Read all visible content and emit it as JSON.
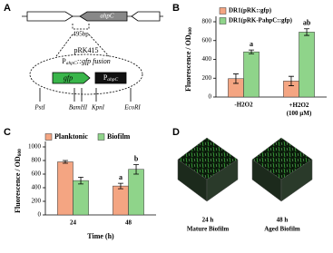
{
  "panels": [
    "A",
    "B",
    "C",
    "D"
  ],
  "diagram": {
    "gene": "ahpC",
    "distance": "495bp",
    "plasmid": "pRK415",
    "fusion": {
      "promoter": "P",
      "promoter_sub": "ahpC",
      "rest": "::gfp fusion"
    },
    "reporter": "gfp",
    "promoter_box": {
      "text": "P",
      "sub": "ahpC"
    },
    "sites": [
      "PstI",
      "BamHI",
      "KpnI",
      "EcoRI"
    ]
  },
  "chart_data": [
    {
      "type": "bar",
      "ylabel": "Fluorescence / OD",
      "ylabel_sub": "600",
      "categories": [
        "-H2O2",
        "+H2O2 (100 µM)"
      ],
      "series": [
        {
          "name": "DR1(pRK::gfp)",
          "color": "#f4a582",
          "values": [
            195,
            170
          ],
          "errors": [
            50,
            50
          ]
        },
        {
          "name": "DR1(pRK-PahpC::gfp)",
          "color": "#8fd48a",
          "values": [
            480,
            690
          ],
          "errors": [
            20,
            35
          ]
        }
      ],
      "annotations": [
        {
          "text": "a",
          "series": 1,
          "category": 0
        },
        {
          "text": "ab",
          "series": 1,
          "category": 1
        }
      ],
      "ylim": [
        0,
        800
      ],
      "yticks": [
        0,
        200,
        400,
        600,
        800
      ],
      "legend": "upper left"
    },
    {
      "type": "bar",
      "ylabel": "Fluorescence / OD",
      "ylabel_sub": "600",
      "xlabel": "Time (h)",
      "categories": [
        "24",
        "48"
      ],
      "series": [
        {
          "name": "Planktonic",
          "color": "#f4a582",
          "values": [
            780,
            425
          ],
          "errors": [
            20,
            40
          ]
        },
        {
          "name": "Biofilm",
          "color": "#8fd48a",
          "values": [
            505,
            670
          ],
          "errors": [
            50,
            70
          ]
        }
      ],
      "annotations": [
        {
          "text": "a",
          "series": 0,
          "category": 1
        },
        {
          "text": "b",
          "series": 1,
          "category": 1
        }
      ],
      "ylim": [
        0,
        1000
      ],
      "yticks": [
        0,
        200,
        400,
        600,
        800,
        1000
      ],
      "legend": "top"
    }
  ],
  "images": [
    {
      "time": "24 h",
      "caption": "Mature Biofilm"
    },
    {
      "time": "48 h",
      "caption": "Aged Biofilm"
    }
  ]
}
